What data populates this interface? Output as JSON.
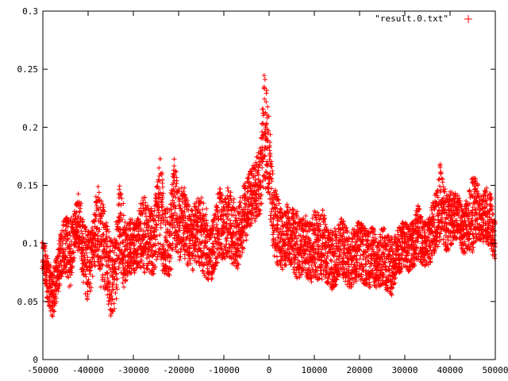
{
  "chart_data": {
    "type": "scatter",
    "title": "",
    "xlabel": "",
    "ylabel": "",
    "xlim": [
      -50000,
      50000
    ],
    "ylim": [
      0,
      0.3
    ],
    "xticks": [
      -50000,
      -40000,
      -30000,
      -20000,
      -10000,
      0,
      10000,
      20000,
      30000,
      40000,
      50000
    ],
    "xtick_labels": [
      "-50000",
      "-40000",
      "-30000",
      "-20000",
      "-10000",
      "0",
      "10000",
      "20000",
      "30000",
      "40000",
      "50000"
    ],
    "yticks": [
      0,
      0.05,
      0.1,
      0.15,
      0.2,
      0.25,
      0.3
    ],
    "ytick_labels": [
      "0",
      "0.05",
      "0.1",
      "0.15",
      "0.2",
      "0.25",
      "0.3"
    ],
    "grid": false,
    "legend_position": "top-right",
    "marker": "+",
    "series": [
      {
        "name": "\"result.0.txt\"",
        "color": "#ff0000",
        "x": [
          -50000,
          -49000,
          -48000,
          -47000,
          -46000,
          -45000,
          -44000,
          -43000,
          -42000,
          -41000,
          -40000,
          -39000,
          -38000,
          -37000,
          -36000,
          -35000,
          -34000,
          -33000,
          -32000,
          -31000,
          -30000,
          -29000,
          -28000,
          -27000,
          -26000,
          -25000,
          -24000,
          -23000,
          -22000,
          -21000,
          -20000,
          -19000,
          -18000,
          -17000,
          -16000,
          -15000,
          -14000,
          -13000,
          -12000,
          -11000,
          -10000,
          -9000,
          -8000,
          -7000,
          -6000,
          -5000,
          -4000,
          -3000,
          -2000,
          -1000,
          0,
          1000,
          2000,
          3000,
          4000,
          5000,
          6000,
          7000,
          8000,
          9000,
          10000,
          11000,
          12000,
          13000,
          14000,
          15000,
          16000,
          17000,
          18000,
          19000,
          20000,
          21000,
          22000,
          23000,
          24000,
          25000,
          26000,
          27000,
          28000,
          29000,
          30000,
          31000,
          32000,
          33000,
          34000,
          35000,
          36000,
          37000,
          38000,
          39000,
          40000,
          41000,
          42000,
          43000,
          44000,
          45000,
          46000,
          47000,
          48000,
          49000,
          50000
        ],
        "y_center": [
          0.09,
          0.07,
          0.055,
          0.07,
          0.09,
          0.1,
          0.09,
          0.11,
          0.12,
          0.09,
          0.08,
          0.095,
          0.12,
          0.1,
          0.09,
          0.07,
          0.075,
          0.12,
          0.09,
          0.1,
          0.095,
          0.1,
          0.11,
          0.105,
          0.1,
          0.11,
          0.13,
          0.1,
          0.1,
          0.14,
          0.115,
          0.12,
          0.11,
          0.1,
          0.11,
          0.11,
          0.1,
          0.09,
          0.1,
          0.12,
          0.11,
          0.12,
          0.11,
          0.1,
          0.12,
          0.13,
          0.14,
          0.145,
          0.155,
          0.2,
          0.17,
          0.12,
          0.11,
          0.1,
          0.11,
          0.105,
          0.1,
          0.095,
          0.1,
          0.09,
          0.1,
          0.095,
          0.1,
          0.09,
          0.085,
          0.09,
          0.1,
          0.09,
          0.085,
          0.09,
          0.095,
          0.09,
          0.085,
          0.09,
          0.08,
          0.09,
          0.085,
          0.08,
          0.09,
          0.095,
          0.1,
          0.095,
          0.1,
          0.11,
          0.1,
          0.1,
          0.11,
          0.12,
          0.14,
          0.115,
          0.12,
          0.125,
          0.12,
          0.11,
          0.12,
          0.125,
          0.13,
          0.12,
          0.125,
          0.12,
          0.1
        ],
        "y_spread": [
          0.012,
          0.02,
          0.02,
          0.02,
          0.02,
          0.025,
          0.03,
          0.02,
          0.025,
          0.03,
          0.03,
          0.025,
          0.03,
          0.04,
          0.03,
          0.035,
          0.03,
          0.04,
          0.03,
          0.025,
          0.025,
          0.02,
          0.035,
          0.03,
          0.03,
          0.035,
          0.045,
          0.03,
          0.03,
          0.04,
          0.03,
          0.03,
          0.03,
          0.025,
          0.03,
          0.03,
          0.03,
          0.025,
          0.025,
          0.03,
          0.025,
          0.03,
          0.03,
          0.025,
          0.03,
          0.025,
          0.025,
          0.025,
          0.03,
          0.05,
          0.03,
          0.03,
          0.03,
          0.025,
          0.025,
          0.025,
          0.03,
          0.025,
          0.025,
          0.025,
          0.03,
          0.03,
          0.03,
          0.025,
          0.025,
          0.025,
          0.025,
          0.025,
          0.025,
          0.025,
          0.025,
          0.025,
          0.025,
          0.025,
          0.02,
          0.025,
          0.025,
          0.025,
          0.02,
          0.02,
          0.02,
          0.02,
          0.02,
          0.025,
          0.02,
          0.02,
          0.025,
          0.025,
          0.035,
          0.025,
          0.025,
          0.02,
          0.02,
          0.02,
          0.025,
          0.035,
          0.025,
          0.02,
          0.025,
          0.025,
          0.015
        ]
      }
    ]
  }
}
